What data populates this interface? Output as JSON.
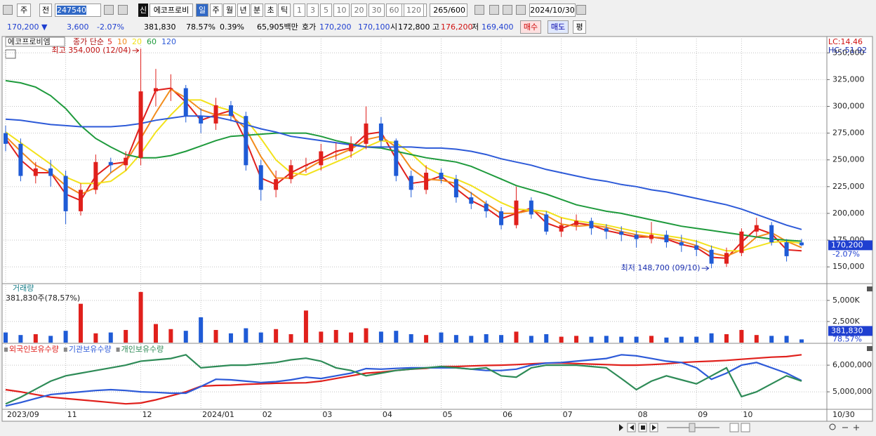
{
  "toolbar": {
    "market": "주",
    "prev": "전",
    "code": "247540",
    "badge": "신",
    "name": "에코프로비",
    "periods": [
      "일",
      "주",
      "월",
      "년",
      "분",
      "초",
      "틱"
    ],
    "intervals": [
      "1",
      "3",
      "5",
      "10",
      "20",
      "30",
      "60",
      "120"
    ],
    "count": "265/600",
    "date": "2024/10/30"
  },
  "quote": {
    "price": "170,200 ▼",
    "change": "3,600",
    "rate": "-2.07%",
    "volume": "381,830",
    "volume_rate": "78.57%",
    "turnover": "0.39%",
    "amount": "65,905백만",
    "bid_label": "호가",
    "ask": "170,200",
    "bid": "170,100",
    "open_label": "시",
    "open": "172,800",
    "high_label": "고",
    "high": "176,200",
    "low_label": "저",
    "low": "169,400",
    "buy": "매수",
    "sell": "매도",
    "avg": "평"
  },
  "chart_data": [
    {
      "type": "candlestick",
      "title": "에코프로비엠",
      "legend_prefix": "종가 단순",
      "up_color": "#e0201c",
      "down_color": "#1f5bd6",
      "open": [
        275000,
        265000,
        235000,
        242000,
        235000,
        202000,
        222000,
        248000,
        245000,
        252000,
        314000,
        317000,
        317000,
        291000,
        284000,
        301000,
        291000,
        245000,
        222000,
        232000,
        245000,
        245000,
        258000,
        258000,
        265000,
        284000,
        268000,
        235000,
        222000,
        238000,
        232000,
        215000,
        209000,
        202000,
        189000,
        212000,
        199000,
        183000,
        189000,
        193000,
        186000,
        183000,
        180000,
        176000,
        180000,
        173000,
        170000,
        166000,
        153000,
        163000,
        183000,
        189000,
        173000,
        172800
      ],
      "high": [
        282000,
        270000,
        248000,
        250000,
        240000,
        228000,
        255000,
        252000,
        258000,
        354000,
        335000,
        330000,
        320000,
        298000,
        308000,
        305000,
        295000,
        250000,
        240000,
        250000,
        252000,
        265000,
        266000,
        272000,
        300000,
        290000,
        270000,
        240000,
        245000,
        242000,
        236000,
        220000,
        212000,
        206000,
        225000,
        215000,
        202000,
        196000,
        199000,
        196000,
        190000,
        188000,
        184000,
        192000,
        184000,
        180000,
        175000,
        170000,
        168000,
        186000,
        196000,
        192000,
        176000,
        176200
      ],
      "low": [
        258000,
        230000,
        228000,
        225000,
        190000,
        198000,
        218000,
        238000,
        240000,
        245000,
        300000,
        305000,
        285000,
        275000,
        278000,
        286000,
        240000,
        212000,
        215000,
        228000,
        238000,
        240000,
        250000,
        252000,
        260000,
        262000,
        230000,
        215000,
        218000,
        228000,
        210000,
        204000,
        196000,
        185000,
        186000,
        195000,
        180000,
        178000,
        184000,
        180000,
        176000,
        174000,
        168000,
        172000,
        168000,
        164000,
        160000,
        148700,
        150000,
        160000,
        178000,
        170000,
        155000,
        169400
      ],
      "close": [
        265000,
        235000,
        242000,
        235000,
        202000,
        222000,
        248000,
        245000,
        252000,
        314000,
        317000,
        317000,
        291000,
        284000,
        301000,
        291000,
        245000,
        222000,
        232000,
        245000,
        245000,
        258000,
        258000,
        265000,
        284000,
        268000,
        235000,
        222000,
        238000,
        232000,
        215000,
        209000,
        202000,
        189000,
        212000,
        199000,
        183000,
        189000,
        193000,
        186000,
        183000,
        180000,
        176000,
        180000,
        173000,
        170000,
        166000,
        153000,
        163000,
        183000,
        189000,
        173000,
        160000,
        170200
      ],
      "series": [
        {
          "name": "5",
          "color": "#e0201c",
          "values": [
            270000,
            250000,
            238000,
            238000,
            218000,
            212000,
            235000,
            246000,
            248000,
            283000,
            315000,
            317000,
            304000,
            287000,
            292000,
            296000,
            268000,
            233000,
            227000,
            238000,
            245000,
            251000,
            258000,
            261000,
            274000,
            276000,
            251000,
            228000,
            230000,
            235000,
            223000,
            212000,
            205000,
            195000,
            200000,
            205000,
            191000,
            186000,
            191000,
            189000,
            184000,
            181000,
            178000,
            178000,
            176000,
            171000,
            168000,
            159000,
            158000,
            173000,
            186000,
            181000,
            166000,
            165000
          ]
        },
        {
          "name": "10",
          "color": "#f28c1c",
          "values": [
            272000,
            258000,
            245000,
            238000,
            226000,
            218000,
            224000,
            238000,
            248000,
            270000,
            294000,
            316000,
            308000,
            297000,
            292000,
            292000,
            279000,
            253000,
            233000,
            233000,
            241000,
            249000,
            254000,
            260000,
            269000,
            272000,
            262000,
            242000,
            232000,
            231000,
            228000,
            219000,
            209000,
            200000,
            200000,
            203000,
            198000,
            190000,
            188000,
            189000,
            187000,
            183000,
            180000,
            178000,
            177000,
            174000,
            170000,
            163000,
            160000,
            166000,
            178000,
            182000,
            174000,
            168000
          ]
        },
        {
          "name": "20",
          "color": "#f2e21c",
          "values": [
            276000,
            266000,
            256000,
            246000,
            234000,
            228000,
            228000,
            230000,
            240000,
            256000,
            276000,
            292000,
            306000,
            306000,
            300000,
            296000,
            288000,
            270000,
            250000,
            238000,
            236000,
            242000,
            248000,
            254000,
            262000,
            268000,
            266000,
            256000,
            243000,
            236000,
            232000,
            226000,
            218000,
            210000,
            204000,
            203000,
            202000,
            196000,
            193000,
            191000,
            189000,
            186000,
            183000,
            181000,
            179000,
            177000,
            174000,
            169000,
            165000,
            165000,
            169000,
            173000,
            174000,
            172000
          ]
        },
        {
          "name": "60",
          "color": "#1e9a3c",
          "values": [
            324000,
            322000,
            318000,
            310000,
            298000,
            282000,
            270000,
            262000,
            255000,
            252000,
            252000,
            254000,
            258000,
            263000,
            268000,
            272000,
            273000,
            274000,
            275000,
            275000,
            275000,
            272000,
            268000,
            265000,
            262000,
            261000,
            258000,
            255000,
            252000,
            250000,
            248000,
            244000,
            238000,
            232000,
            226000,
            222000,
            218000,
            213000,
            208000,
            205000,
            202000,
            200000,
            197000,
            194000,
            191000,
            188000,
            186000,
            184000,
            182000,
            180000,
            178000,
            176000,
            175000,
            174000
          ]
        },
        {
          "name": "120",
          "color": "#2d5ad8",
          "values": [
            288000,
            287000,
            285000,
            283000,
            282000,
            281000,
            281000,
            281000,
            282000,
            284000,
            287000,
            289000,
            291000,
            291000,
            290000,
            287000,
            283000,
            279000,
            276000,
            272000,
            270000,
            268000,
            266000,
            264000,
            262000,
            262000,
            262000,
            262000,
            261000,
            261000,
            260000,
            258000,
            255000,
            251000,
            248000,
            245000,
            241000,
            238000,
            235000,
            232000,
            230000,
            227000,
            225000,
            222000,
            220000,
            217000,
            214000,
            211000,
            208000,
            204000,
            199000,
            194000,
            189000,
            185000
          ]
        }
      ],
      "ylim": [
        135000,
        362000
      ],
      "yticks": [
        {
          "value": 150000,
          "label": "150,000"
        },
        {
          "value": 175000,
          "label": "175,000"
        },
        {
          "value": 200000,
          "label": "200,000"
        },
        {
          "value": 225000,
          "label": "225,000"
        },
        {
          "value": 250000,
          "label": "250,000"
        },
        {
          "value": 275000,
          "label": "275,000"
        },
        {
          "value": 300000,
          "label": "300,000"
        },
        {
          "value": 325000,
          "label": "325,000"
        },
        {
          "value": 350000,
          "label": "350,000"
        }
      ],
      "high_label": "최고 354,000 (12/04)",
      "low_label": "최저 148,700 (09/10)",
      "lc_label": "LC:14.46",
      "hc_label": "HC:-51.92",
      "last_label": "170,200",
      "change_label": "-2.07%",
      "grid": true
    },
    {
      "type": "bar",
      "title": "거래량",
      "subtitle": "381,830주(78,57%)",
      "values": [
        1200000,
        900000,
        1000000,
        800000,
        1400000,
        4600000,
        1100000,
        1200000,
        1500000,
        6000000,
        2200000,
        1600000,
        1400000,
        3000000,
        1500000,
        1100000,
        1700000,
        1200000,
        1600000,
        1000000,
        3800000,
        1300000,
        1500000,
        1200000,
        1700000,
        1300000,
        1400000,
        1000000,
        900000,
        1200000,
        900000,
        800000,
        1000000,
        900000,
        1300000,
        800000,
        1000000,
        700000,
        800000,
        700000,
        800000,
        700000,
        700000,
        800000,
        600000,
        700000,
        700000,
        1100000,
        1000000,
        1500000,
        900000,
        800000,
        800000,
        381830
      ],
      "ylim": [
        0,
        6900000
      ],
      "yticks": [
        {
          "value": 2500000,
          "label": "2,500K"
        },
        {
          "value": 5000000,
          "label": "5,000K"
        }
      ],
      "last_label": "381,830",
      "rate_label": "78.57%",
      "grid": true
    },
    {
      "type": "line",
      "categories": [
        "2023/09",
        null,
        null,
        null,
        "11",
        null,
        null,
        null,
        null,
        "12",
        null,
        null,
        null,
        "2024/01",
        null,
        null,
        null,
        "02",
        null,
        null,
        null,
        "03",
        null,
        null,
        null,
        "04",
        null,
        null,
        null,
        "05",
        null,
        null,
        null,
        "06",
        null,
        null,
        null,
        "07",
        null,
        null,
        null,
        null,
        "08",
        null,
        null,
        null,
        "09",
        null,
        null,
        "10",
        null,
        null,
        null,
        null
      ],
      "x_end_label": "10/30",
      "series": [
        {
          "name": "외국인보유수량",
          "color": "#e0201c",
          "values": [
            5080000,
            5000000,
            4900000,
            4800000,
            4750000,
            4700000,
            4650000,
            4600000,
            4550000,
            4580000,
            4700000,
            4850000,
            5000000,
            5210000,
            5240000,
            5250000,
            5280000,
            5300000,
            5320000,
            5330000,
            5340000,
            5400000,
            5500000,
            5600000,
            5700000,
            5740000,
            5800000,
            5850000,
            5880000,
            5950000,
            5950000,
            5970000,
            5990000,
            6000000,
            6020000,
            6050000,
            6080000,
            6080000,
            6060000,
            6040000,
            6020000,
            6000000,
            6000000,
            6020000,
            6050000,
            6100000,
            6130000,
            6150000,
            6180000,
            6220000,
            6260000,
            6300000,
            6320000,
            6390000
          ]
        },
        {
          "name": "기관보유수량",
          "color": "#2d5ad8",
          "values": [
            4470000,
            4600000,
            4750000,
            4900000,
            4950000,
            5000000,
            5050000,
            5080000,
            5050000,
            5000000,
            4980000,
            4950000,
            4950000,
            5200000,
            5470000,
            5450000,
            5400000,
            5350000,
            5380000,
            5450000,
            5550000,
            5500000,
            5600000,
            5700000,
            5870000,
            5850000,
            5880000,
            5900000,
            5900000,
            5900000,
            5900000,
            5850000,
            5800000,
            5800000,
            5850000,
            6000000,
            6080000,
            6100000,
            6150000,
            6200000,
            6250000,
            6390000,
            6350000,
            6250000,
            6150000,
            6100000,
            5900000,
            5470000,
            5700000,
            6000000,
            6100000,
            5900000,
            5700000,
            5420000
          ]
        },
        {
          "name": "개인보유수량",
          "color": "#2e8b57",
          "values": [
            4550000,
            4800000,
            5100000,
            5400000,
            5600000,
            5700000,
            5800000,
            5900000,
            6000000,
            6150000,
            6200000,
            6250000,
            6390000,
            5900000,
            5950000,
            6000000,
            6000000,
            6050000,
            6100000,
            6200000,
            6260000,
            6150000,
            5900000,
            5800000,
            5600000,
            5700000,
            5800000,
            5850000,
            5900000,
            5950000,
            5900000,
            5850000,
            5900000,
            5600000,
            5550000,
            5900000,
            6000000,
            6000000,
            6000000,
            5950000,
            5900000,
            5500000,
            5080000,
            5400000,
            5600000,
            5450000,
            5300000,
            5600000,
            5900000,
            4820000,
            5000000,
            5300000,
            5600000,
            5400000
          ]
        }
      ],
      "ylim": [
        4370000,
        6740000
      ],
      "yticks": [
        {
          "value": 5000000,
          "label": "5,000,000"
        },
        {
          "value": 6000000,
          "label": "6,000,000"
        }
      ],
      "grid": true
    }
  ]
}
